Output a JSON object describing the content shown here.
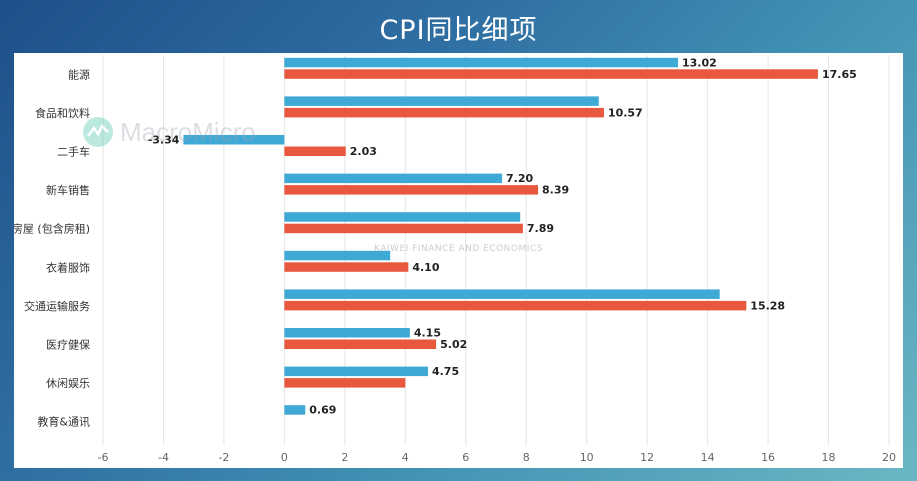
{
  "title": "CPI同比细项",
  "watermarks": [
    "MacroMicro",
    "KAIWEI FINANCE AND ECONOMICS"
  ],
  "colors": {
    "series_blue": "#3fa9d6",
    "series_red": "#e8583f"
  },
  "chart_data": {
    "type": "bar",
    "orientation": "horizontal",
    "title": "",
    "categories": [
      "能源",
      "食品和饮料",
      "二手车",
      "新车销售",
      "房屋 (包含房租)",
      "衣着服饰",
      "交通运输服务",
      "医疗健保",
      "休闲娱乐",
      "教育&通讯"
    ],
    "series": [
      {
        "values": [
          13.02,
          10.4,
          -3.34,
          7.2,
          7.8,
          3.5,
          14.4,
          4.15,
          4.75,
          0.69
        ],
        "labels": [
          "13.02",
          "",
          "-3.34",
          "7.20",
          "",
          "",
          "",
          "4.15",
          "4.75",
          "0.69"
        ]
      },
      {
        "values": [
          17.65,
          10.57,
          2.03,
          8.39,
          7.89,
          4.1,
          15.28,
          5.02,
          4.0,
          null
        ],
        "labels": [
          "17.65",
          "10.57",
          "2.03",
          "8.39",
          "7.89",
          "4.10",
          "15.28",
          "5.02",
          "",
          ""
        ]
      }
    ],
    "xlim": [
      -6,
      20
    ],
    "xticks": [
      "-6",
      "-4",
      "-2",
      "0",
      "2",
      "4",
      "6",
      "8",
      "10",
      "12",
      "14",
      "16",
      "18",
      "20"
    ],
    "xlabel": "",
    "ylabel": "",
    "grid": true,
    "legend": "none"
  }
}
